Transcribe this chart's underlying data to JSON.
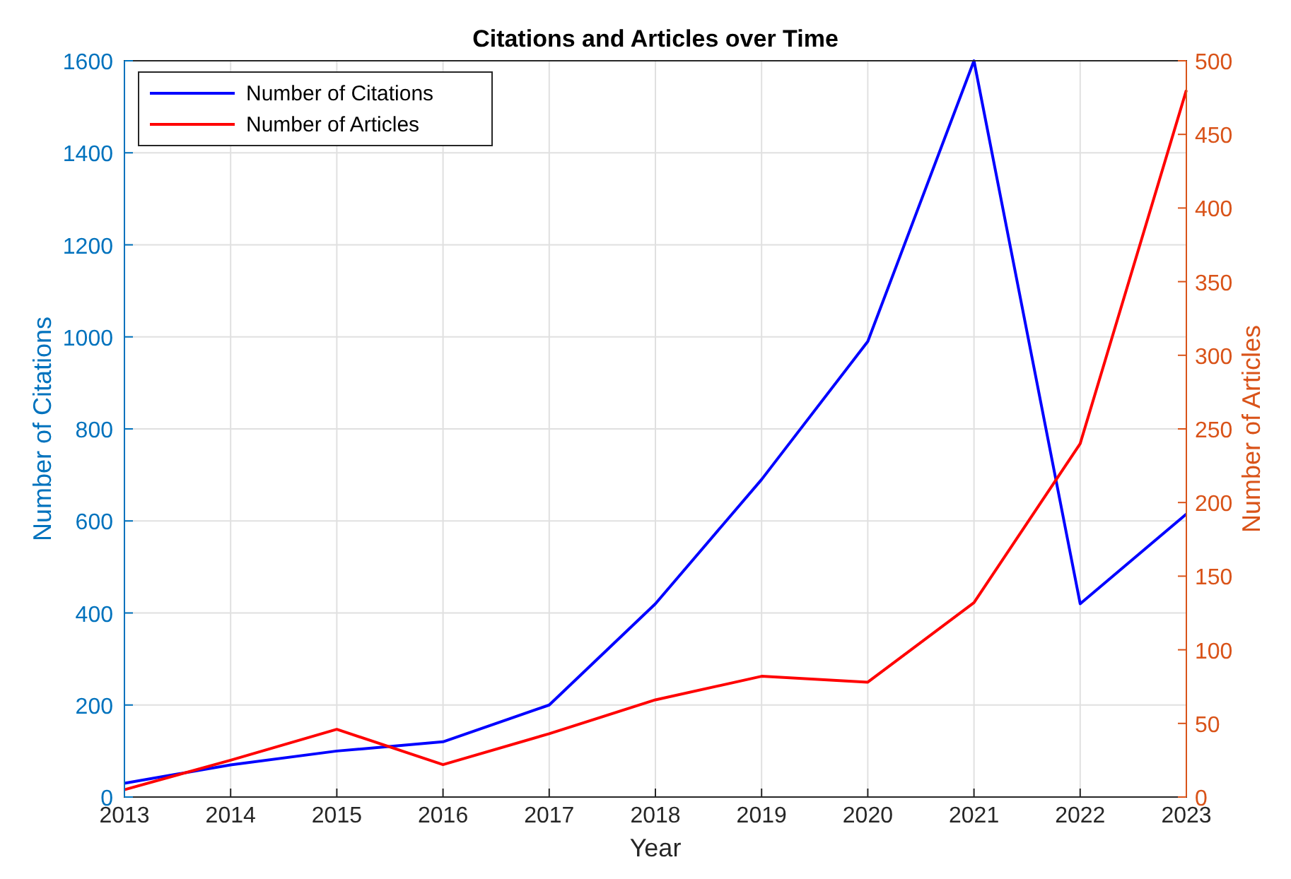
{
  "chart_data": {
    "type": "line",
    "title": "Citations and Articles over Time",
    "xlabel": "Year",
    "ylabel": "Number of Citations",
    "y2label": "Number of Articles",
    "x": [
      2013,
      2014,
      2015,
      2016,
      2017,
      2018,
      2019,
      2020,
      2021,
      2022,
      2023
    ],
    "series": [
      {
        "name": "Number of Citations",
        "color": "#0000ff",
        "values": [
          30,
          70,
          100,
          120,
          200,
          420,
          690,
          990,
          1600,
          420,
          615
        ]
      },
      {
        "name": "Number of Articles",
        "color": "#ff0000",
        "axis": "y2",
        "values": [
          5,
          25,
          46,
          22,
          43,
          66,
          82,
          78,
          132,
          240,
          480
        ]
      }
    ],
    "xlim": [
      2013,
      2023
    ],
    "xticks": [
      2013,
      2014,
      2015,
      2016,
      2017,
      2018,
      2019,
      2020,
      2021,
      2022,
      2023
    ],
    "ylim": [
      0,
      1600
    ],
    "yticks": [
      0,
      200,
      400,
      600,
      800,
      1000,
      1200,
      1400,
      1600
    ],
    "y2lim": [
      0,
      500
    ],
    "y2ticks": [
      0,
      50,
      100,
      150,
      200,
      250,
      300,
      350,
      400,
      450,
      500
    ],
    "grid": true,
    "legend": "top left",
    "marker": "none",
    "line_style": "solid"
  }
}
